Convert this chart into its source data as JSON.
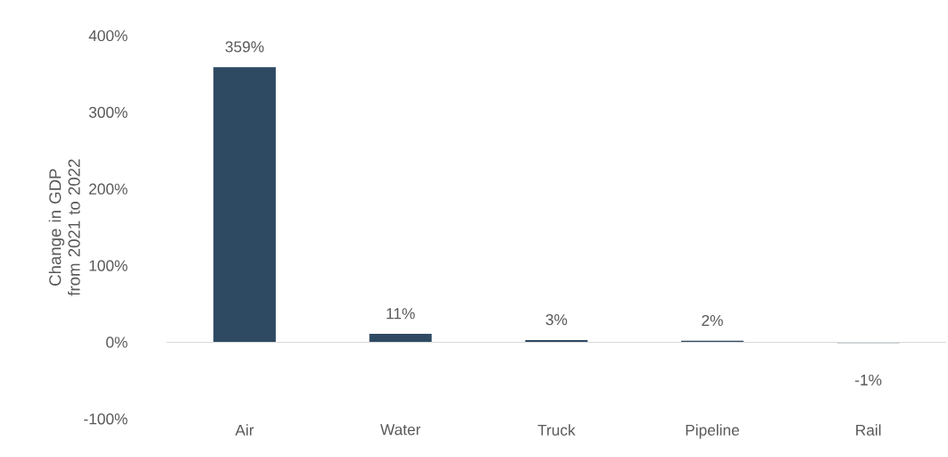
{
  "chart_data": {
    "type": "bar",
    "ylabel": "Change in GDP from 2021 to 2022",
    "categories": [
      "Air",
      "Water",
      "Truck",
      "Pipeline",
      "Rail"
    ],
    "values": [
      359,
      11,
      3,
      2,
      -1
    ],
    "value_labels": [
      "359%",
      "11%",
      "3%",
      "2%",
      "-1%"
    ],
    "color": "#2e4a62",
    "ylim": [
      -100,
      400
    ],
    "yticks": [
      {
        "value": -100,
        "label": "-100%"
      },
      {
        "value": 0,
        "label": "0%"
      },
      {
        "value": 100,
        "label": "100%"
      },
      {
        "value": 200,
        "label": "200%"
      },
      {
        "value": 300,
        "label": "300%"
      },
      {
        "value": 400,
        "label": "400%"
      }
    ]
  }
}
